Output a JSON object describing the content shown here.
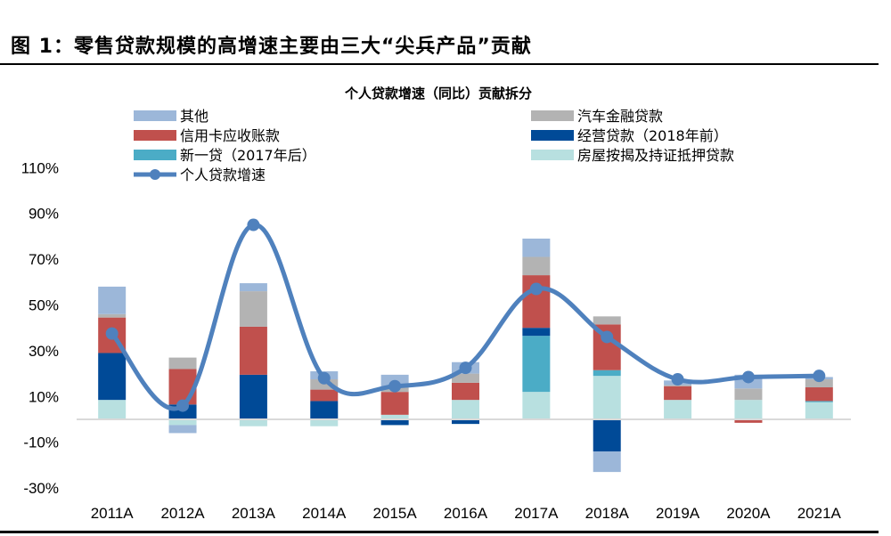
{
  "figure_title": "图 1：零售贷款规模的高增速主要由三大“尖兵产品”贡献",
  "chart_data": {
    "type": "bar",
    "subtype": "stacked bar with line overlay",
    "title": "个人贷款增速（同比）贡献拆分",
    "xlabel": "",
    "ylabel": "",
    "ylim": [
      -30,
      110
    ],
    "yticks": [
      -30,
      -10,
      10,
      30,
      50,
      70,
      90,
      110
    ],
    "ytick_labels": [
      "-30%",
      "-10%",
      "10%",
      "30%",
      "50%",
      "70%",
      "90%",
      "110%"
    ],
    "grid": false,
    "legend_position": "top",
    "categories": [
      "2011A",
      "2012A",
      "2013A",
      "2014A",
      "2015A",
      "2016A",
      "2017A",
      "2018A",
      "2019A",
      "2020A",
      "2021A"
    ],
    "series": [
      {
        "name": "房屋按揭及持证抵押贷款",
        "type": "bar",
        "color": "#b8e0e0",
        "values": [
          8.5,
          -2.5,
          -3,
          -3,
          2,
          8.5,
          12,
          19,
          8.5,
          8.5,
          7.5
        ]
      },
      {
        "name": "新一贷（2017年后）",
        "type": "bar",
        "color": "#4bacc6",
        "values": [
          0,
          0,
          0,
          0,
          0,
          0,
          24.5,
          2.5,
          0,
          0,
          0.5
        ]
      },
      {
        "name": "经营贷款（2018年前）",
        "type": "bar",
        "color": "#004a97",
        "values": [
          20.5,
          6.5,
          19.5,
          8,
          -2.5,
          -2,
          3.5,
          -14,
          0,
          0,
          0
        ]
      },
      {
        "name": "信用卡应收账款",
        "type": "bar",
        "color": "#c0504d",
        "values": [
          15.5,
          15.5,
          21,
          5,
          10,
          7.5,
          23,
          20,
          6,
          -1.5,
          6
        ]
      },
      {
        "name": "汽车金融贷款",
        "type": "bar",
        "color": "#b3b3b3",
        "values": [
          1.5,
          5,
          15.5,
          4.5,
          2,
          4,
          8,
          3.5,
          0.5,
          5,
          3.5
        ]
      },
      {
        "name": "其他",
        "type": "bar",
        "color": "#9cb7d9",
        "values": [
          12,
          -3.5,
          3.5,
          3.5,
          5.5,
          5,
          8,
          -9,
          2,
          6,
          1
        ]
      },
      {
        "name": "个人贷款增速",
        "type": "line",
        "color": "#4f81bd",
        "values": [
          37.5,
          6,
          85,
          18,
          14.5,
          22.5,
          57,
          36,
          17.5,
          18.5,
          19
        ]
      }
    ],
    "legend": {
      "left": [
        "其他",
        "信用卡应收账款",
        "新一贷（2017年后）",
        "个人贷款增速"
      ],
      "right": [
        "汽车金融贷款",
        "经营贷款（2018年前）",
        "房屋按揭及持证抵押贷款"
      ]
    }
  }
}
